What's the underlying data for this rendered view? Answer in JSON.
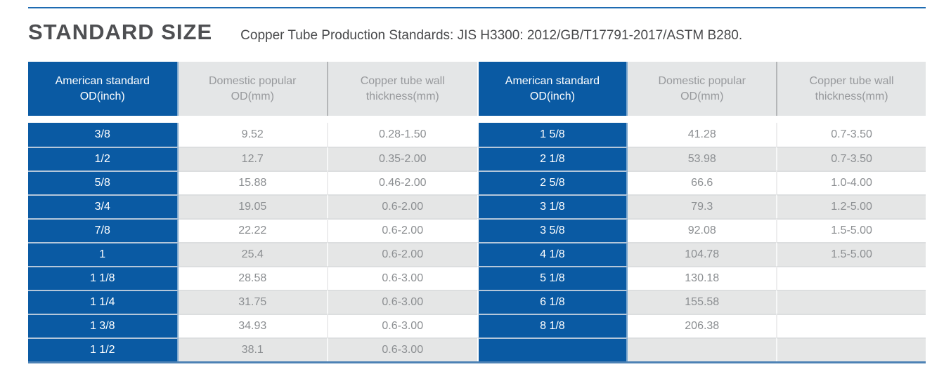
{
  "header": {
    "title": "STANDARD SIZE",
    "subtitle": "Copper Tube Production Standards: JIS H3300: 2012/GB/T17791-2017/ASTM B280."
  },
  "colors": {
    "accent_blue": "#0a5aa3",
    "rule_blue": "#1e6bb2",
    "bottom_rule_blue": "#4d82b5",
    "blue_edge": "#7ea8ce",
    "header_bg": "#e4e6e7",
    "row_alt": "#e5e6e6",
    "header_text": "#97999c",
    "data_text": "#8b8e91",
    "title_color": "#4e4f52",
    "subtitle_color": "#48494b"
  },
  "table": {
    "column_headers": {
      "inch": "American standard OD(inch)",
      "mm": "Domestic popular OD(mm)",
      "thickness": "Copper tube wall thickness(mm)"
    },
    "left_rows": [
      {
        "inch": "3/8",
        "mm": "9.52",
        "thickness": "0.28-1.50"
      },
      {
        "inch": "1/2",
        "mm": "12.7",
        "thickness": "0.35-2.00"
      },
      {
        "inch": "5/8",
        "mm": "15.88",
        "thickness": "0.46-2.00"
      },
      {
        "inch": "3/4",
        "mm": "19.05",
        "thickness": "0.6-2.00"
      },
      {
        "inch": "7/8",
        "mm": "22.22",
        "thickness": "0.6-2.00"
      },
      {
        "inch": "1",
        "mm": "25.4",
        "thickness": "0.6-2.00"
      },
      {
        "inch": "1 1/8",
        "mm": "28.58",
        "thickness": "0.6-3.00"
      },
      {
        "inch": "1 1/4",
        "mm": "31.75",
        "thickness": "0.6-3.00"
      },
      {
        "inch": "1 3/8",
        "mm": "34.93",
        "thickness": "0.6-3.00"
      },
      {
        "inch": "1 1/2",
        "mm": "38.1",
        "thickness": "0.6-3.00"
      }
    ],
    "right_rows": [
      {
        "inch": "1 5/8",
        "mm": "41.28",
        "thickness": "0.7-3.50"
      },
      {
        "inch": "2 1/8",
        "mm": "53.98",
        "thickness": "0.7-3.50"
      },
      {
        "inch": "2 5/8",
        "mm": "66.6",
        "thickness": "1.0-4.00"
      },
      {
        "inch": "3 1/8",
        "mm": "79.3",
        "thickness": "1.2-5.00"
      },
      {
        "inch": "3 5/8",
        "mm": "92.08",
        "thickness": "1.5-5.00"
      },
      {
        "inch": "4 1/8",
        "mm": "104.78",
        "thickness": "1.5-5.00"
      },
      {
        "inch": "5 1/8",
        "mm": "130.18",
        "thickness": ""
      },
      {
        "inch": "6 1/8",
        "mm": "155.58",
        "thickness": ""
      },
      {
        "inch": "8 1/8",
        "mm": "206.38",
        "thickness": ""
      },
      {
        "inch": "",
        "mm": "",
        "thickness": ""
      }
    ]
  }
}
